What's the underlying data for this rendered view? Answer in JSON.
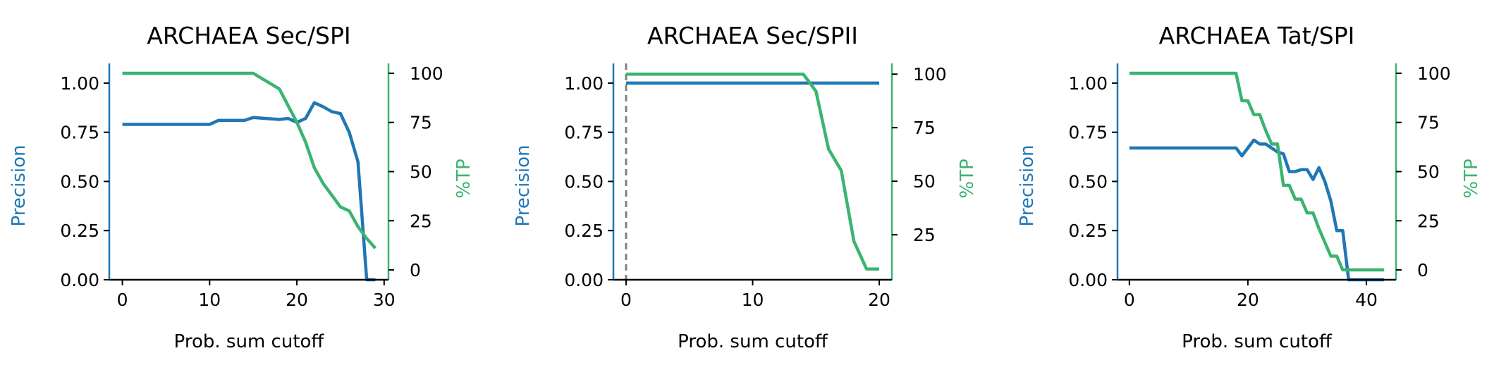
{
  "colors": {
    "precision": "#1f77b4",
    "tp": "#3cb371",
    "cutoff_marker": "#808080",
    "axis": "#000000"
  },
  "chart_data": [
    {
      "type": "line",
      "title": "ARCHAEA Sec/SPI",
      "xlabel": "Prob. sum cutoff",
      "ylabel_left": "Precision",
      "ylabel_right": "%TP",
      "xlim": [
        -1.5,
        30.5
      ],
      "xticks": [
        0,
        10,
        20,
        30
      ],
      "ylim_left": [
        0,
        1.1
      ],
      "yticks_left": [
        "0.00",
        "0.25",
        "0.50",
        "0.75",
        "1.00"
      ],
      "ylim_right": [
        -5,
        105
      ],
      "yticks_right": [
        0,
        25,
        50,
        75,
        100
      ],
      "grid": false,
      "legend": "none",
      "vline_x": null,
      "series": [
        {
          "axis": "left",
          "color": "#1f77b4",
          "x": [
            0,
            10,
            11,
            14,
            15,
            18,
            19,
            20,
            21,
            22,
            23,
            24,
            25,
            26,
            27,
            28,
            29
          ],
          "y": [
            0.79,
            0.79,
            0.81,
            0.81,
            0.825,
            0.815,
            0.82,
            0.8,
            0.82,
            0.9,
            0.88,
            0.855,
            0.845,
            0.75,
            0.6,
            0.0,
            0.0
          ]
        },
        {
          "axis": "right",
          "color": "#3cb371",
          "x": [
            0,
            15,
            18,
            20,
            21,
            22,
            23,
            24,
            25,
            26,
            27,
            28,
            29
          ],
          "y": [
            100,
            100,
            92,
            75,
            65,
            52,
            44,
            38,
            32,
            30,
            22,
            16,
            11
          ]
        }
      ]
    },
    {
      "type": "line",
      "title": "ARCHAEA Sec/SPII",
      "xlabel": "Prob. sum cutoff",
      "ylabel_left": "Precision",
      "ylabel_right": "%TP",
      "xlim": [
        -1,
        21
      ],
      "xticks": [
        0,
        10,
        20
      ],
      "ylim_left": [
        0,
        1.1
      ],
      "yticks_left": [
        "0.00",
        "0.25",
        "0.50",
        "0.75",
        "1.00"
      ],
      "ylim_right": [
        4,
        105
      ],
      "yticks_right": [
        25,
        50,
        75,
        100
      ],
      "grid": false,
      "legend": "none",
      "vline_x": 0,
      "series": [
        {
          "axis": "left",
          "color": "#1f77b4",
          "x": [
            0,
            20
          ],
          "y": [
            1.0,
            1.0
          ]
        },
        {
          "axis": "right",
          "color": "#3cb371",
          "x": [
            0,
            14,
            15,
            16,
            17,
            18,
            19,
            20
          ],
          "y": [
            100,
            100,
            92,
            65,
            55,
            22,
            9,
            9
          ]
        }
      ]
    },
    {
      "type": "line",
      "title": "ARCHAEA Tat/SPI",
      "xlabel": "Prob. sum cutoff",
      "ylabel_left": "Precision",
      "ylabel_right": "%TP",
      "xlim": [
        -2,
        45
      ],
      "xticks": [
        0,
        20,
        40
      ],
      "ylim_left": [
        0,
        1.1
      ],
      "yticks_left": [
        "0.00",
        "0.25",
        "0.50",
        "0.75",
        "1.00"
      ],
      "ylim_right": [
        -5,
        105
      ],
      "yticks_right": [
        0,
        25,
        50,
        75,
        100
      ],
      "grid": false,
      "legend": "none",
      "vline_x": null,
      "series": [
        {
          "axis": "left",
          "color": "#1f77b4",
          "x": [
            0,
            18,
            19,
            20,
            21,
            22,
            23,
            24,
            25,
            26,
            27,
            28,
            29,
            30,
            31,
            32,
            33,
            34,
            35,
            36,
            37,
            43
          ],
          "y": [
            0.67,
            0.67,
            0.63,
            0.67,
            0.71,
            0.69,
            0.69,
            0.67,
            0.65,
            0.64,
            0.55,
            0.55,
            0.56,
            0.56,
            0.51,
            0.57,
            0.5,
            0.4,
            0.25,
            0.25,
            0.0,
            0.0
          ]
        },
        {
          "axis": "right",
          "color": "#3cb371",
          "x": [
            0,
            18,
            19,
            20,
            21,
            22,
            23,
            24,
            25,
            26,
            27,
            28,
            29,
            30,
            31,
            32,
            33,
            34,
            35,
            36,
            37,
            43
          ],
          "y": [
            100,
            100,
            86,
            86,
            79,
            79,
            71,
            64,
            64,
            43,
            43,
            36,
            36,
            29,
            29,
            21,
            14,
            7,
            7,
            0,
            0,
            0
          ]
        }
      ]
    }
  ]
}
